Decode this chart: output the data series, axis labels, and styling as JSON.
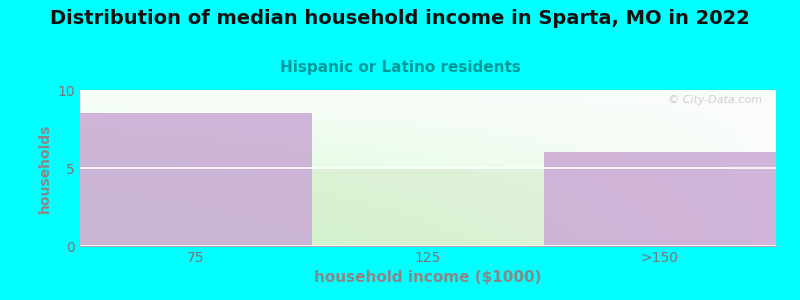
{
  "title": "Distribution of median household income in Sparta, MO in 2022",
  "subtitle": "Hispanic or Latino residents",
  "xlabel": "household income ($1000)",
  "ylabel": "households",
  "categories": [
    "75",
    "125",
    ">150"
  ],
  "values": [
    8.5,
    5.0,
    6.0
  ],
  "bar_colors": [
    "#c9a8d4",
    "#d4e8c8",
    "#c9a8d4"
  ],
  "bar_alpha": [
    0.85,
    0.55,
    0.85
  ],
  "ylim": [
    0,
    10
  ],
  "yticks": [
    0,
    5,
    10
  ],
  "background_color": "#00ffff",
  "title_fontsize": 14,
  "subtitle_fontsize": 11,
  "subtitle_color": "#009999",
  "axis_label_color": "#888888",
  "tick_label_color": "#777777",
  "watermark_text": "© City-Data.com",
  "watermark_color": "#bbbbbb"
}
